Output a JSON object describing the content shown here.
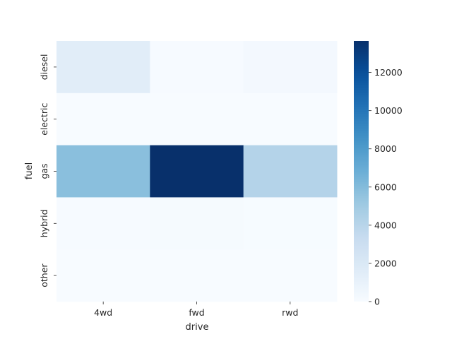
{
  "chart_data": {
    "type": "heatmap",
    "title": "",
    "xlabel": "drive",
    "ylabel": "fuel",
    "x_categories": [
      "4wd",
      "fwd",
      "rwd"
    ],
    "y_categories": [
      "diesel",
      "electric",
      "gas",
      "hybrid",
      "other"
    ],
    "values": [
      [
        1500,
        80,
        300
      ],
      [
        10,
        10,
        10
      ],
      [
        5800,
        13650,
        4200
      ],
      [
        60,
        150,
        40
      ],
      [
        20,
        20,
        15
      ]
    ],
    "colormap": "Blues",
    "color_range": [
      0,
      13650
    ],
    "colorbar_ticks": [
      0,
      2000,
      4000,
      6000,
      8000,
      10000,
      12000
    ],
    "colorbar_tick_labels": [
      "0",
      "2000",
      "4000",
      "6000",
      "8000",
      "10000",
      "12000"
    ],
    "grid": false,
    "legend": "colorbar-right"
  }
}
